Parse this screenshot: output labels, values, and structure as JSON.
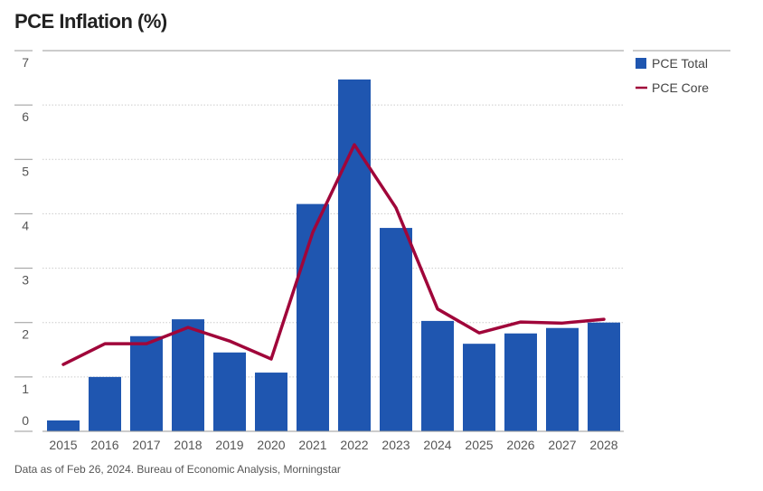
{
  "title": "PCE Inflation (%)",
  "footer": "Data as of Feb 26, 2024. Bureau of Economic Analysis, Morningstar",
  "chart_data": {
    "type": "bar",
    "title": "PCE Inflation (%)",
    "xlabel": "",
    "ylabel": "",
    "ylim": [
      0,
      7
    ],
    "yticks": [
      "0",
      "1",
      "2",
      "3",
      "4",
      "5",
      "6",
      "7"
    ],
    "categories": [
      "2015",
      "2016",
      "2017",
      "2018",
      "2019",
      "2020",
      "2021",
      "2022",
      "2023",
      "2024",
      "2025",
      "2026",
      "2027",
      "2028"
    ],
    "series": [
      {
        "name": "PCE Total",
        "type": "bar",
        "color": "#1f56b0",
        "values": [
          0.2,
          1.0,
          1.75,
          2.06,
          1.45,
          1.08,
          4.18,
          6.47,
          3.74,
          2.03,
          1.61,
          1.8,
          1.9,
          2.0
        ]
      },
      {
        "name": "PCE Core",
        "type": "line",
        "color": "#a0063a",
        "values": [
          1.23,
          1.61,
          1.61,
          1.91,
          1.66,
          1.33,
          3.66,
          5.27,
          4.11,
          2.25,
          1.81,
          2.01,
          1.99,
          2.06
        ]
      }
    ],
    "grid": true,
    "legend": "top-right"
  }
}
